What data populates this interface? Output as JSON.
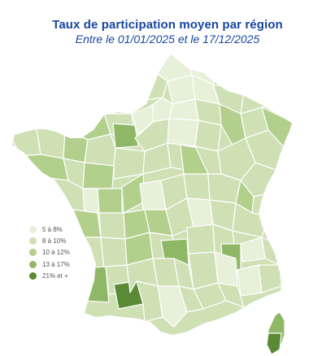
{
  "map": {
    "title": "Taux de participation moyen par région",
    "subtitle": "Entre le 01/01/2025 et le 17/12/2025",
    "colors": {
      "border": "#ffffff",
      "class_1": "#e7f0d8",
      "class_2": "#cfe0b5",
      "class_3": "#b2cf8c",
      "class_4": "#8fb866",
      "class_5": "#5a8a35"
    },
    "legend": [
      {
        "label": "5 à 8%",
        "color": "#e7f0d8"
      },
      {
        "label": "8 à 10%",
        "color": "#cfe0b5"
      },
      {
        "label": "10 à 12%",
        "color": "#b2cf8c"
      },
      {
        "label": "13 à 17%",
        "color": "#8fb866"
      },
      {
        "label": "21% et +",
        "color": "#5a8a35"
      }
    ]
  }
}
